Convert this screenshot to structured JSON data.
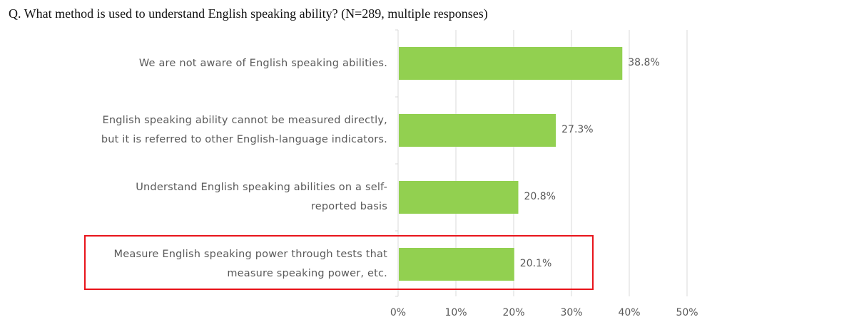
{
  "title": "Q. What method is used to understand English speaking ability? (N=289, multiple responses)",
  "chart_data": {
    "type": "bar",
    "orientation": "horizontal",
    "categories": [
      [
        "We are not aware of English speaking abilities."
      ],
      [
        "English speaking ability cannot be measured directly,",
        "but it is referred to other English-language indicators."
      ],
      [
        "Understand English speaking abilities on a self-",
        "reported basis"
      ],
      [
        "Measure English speaking power through tests that",
        "measure speaking power, etc."
      ]
    ],
    "values": [
      38.8,
      27.3,
      20.8,
      20.1
    ],
    "value_labels": [
      "38.8%",
      "27.3%",
      "20.8%",
      "20.1%"
    ],
    "xlim": [
      0,
      50
    ],
    "xticks": [
      "0%",
      "10%",
      "20%",
      "30%",
      "40%",
      "50%"
    ],
    "grid": true,
    "bar_color": "#92d050",
    "highlight_color": "#e8141b",
    "highlighted_category_index": 3
  }
}
